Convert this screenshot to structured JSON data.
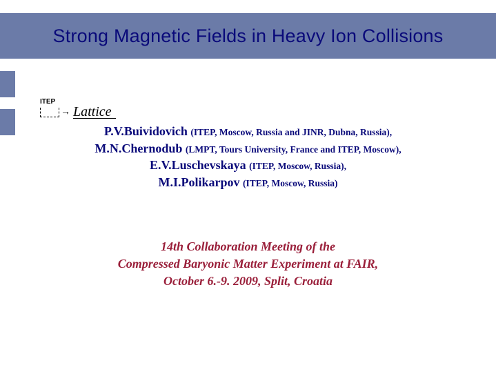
{
  "colors": {
    "band": "#6b7ba8",
    "title_text": "#0a0a7a",
    "author_text": "#0a0a7a",
    "meeting_text": "#9a1f3a",
    "background": "#ffffff"
  },
  "title": "Strong Magnetic Fields in Heavy Ion Collisions",
  "logo": {
    "small": "ITEP",
    "main": "Lattice"
  },
  "authors": [
    {
      "name": "P.V.Buividovich ",
      "affil": "(ITEP, Moscow, Russia and  JINR, Dubna, Russia),"
    },
    {
      "name": "M.N.Chernodub ",
      "affil": "(LMPT, Tours University, France and ITEP, Moscow),"
    },
    {
      "name": "E.V.Luschevskaya ",
      "affil": "(ITEP, Moscow, Russia),"
    },
    {
      "name": "M.I.Polikarpov ",
      "affil": "(ITEP, Moscow, Russia)"
    }
  ],
  "meeting": {
    "line1": "14th Collaboration Meeting of the",
    "line2": "Compressed Baryonic Matter Experiment at FAIR,",
    "line3": "October 6.-9. 2009, Split, Croatia"
  }
}
